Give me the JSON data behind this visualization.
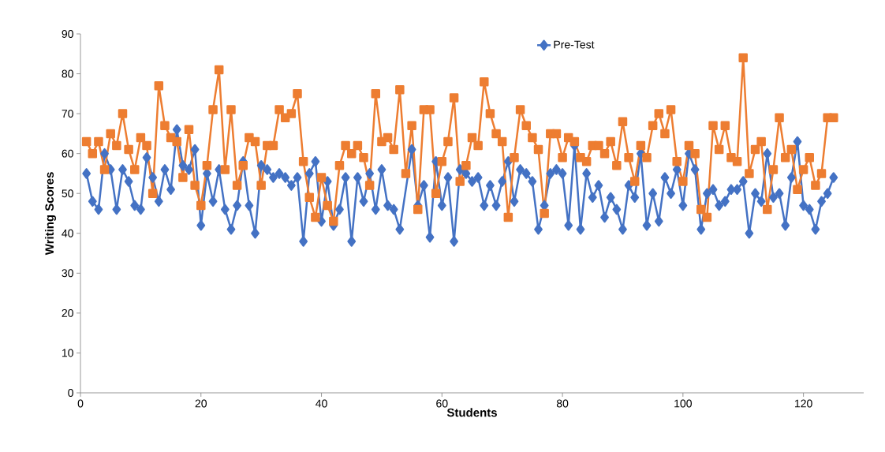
{
  "chart_data": {
    "type": "line",
    "xlabel": "Students",
    "ylabel": "Writing Scores",
    "x": [
      1,
      2,
      3,
      4,
      5,
      6,
      7,
      8,
      9,
      10,
      11,
      12,
      13,
      14,
      15,
      16,
      17,
      18,
      19,
      20,
      21,
      22,
      23,
      24,
      25,
      26,
      27,
      28,
      29,
      30,
      31,
      32,
      33,
      34,
      35,
      36,
      37,
      38,
      39,
      40,
      41,
      42,
      43,
      44,
      45,
      46,
      47,
      48,
      49,
      50,
      51,
      52,
      53,
      54,
      55,
      56,
      57,
      58,
      59,
      60,
      61,
      62,
      63,
      64,
      65,
      66,
      67,
      68,
      69,
      70,
      71,
      72,
      73,
      74,
      75,
      76,
      77,
      78,
      79,
      80,
      81,
      82,
      83,
      84,
      85,
      86,
      87,
      88,
      89,
      90,
      91,
      92,
      93,
      94,
      95,
      96,
      97,
      98,
      99,
      100,
      101,
      102,
      103,
      104,
      105,
      106,
      107,
      108,
      109,
      110,
      111,
      112,
      113,
      114,
      115,
      116,
      117,
      118,
      119,
      120,
      121,
      122,
      123,
      124,
      125
    ],
    "series": [
      {
        "name": "Pre-Test",
        "color": "#4472c4",
        "marker": "diamond",
        "values": [
          55,
          48,
          46,
          60,
          56,
          46,
          56,
          53,
          47,
          46,
          59,
          54,
          48,
          56,
          51,
          66,
          57,
          56,
          61,
          42,
          55,
          48,
          56,
          46,
          41,
          47,
          58,
          47,
          40,
          57,
          56,
          54,
          55,
          54,
          52,
          54,
          38,
          55,
          58,
          43,
          53,
          42,
          46,
          54,
          38,
          54,
          48,
          55,
          46,
          56,
          47,
          46,
          41,
          null,
          61,
          47,
          52,
          39,
          58,
          47,
          54,
          38,
          56,
          55,
          53,
          54,
          47,
          52,
          47,
          53,
          58,
          48,
          56,
          55,
          53,
          41,
          47,
          55,
          56,
          55,
          42,
          62,
          41,
          55,
          49,
          52,
          44,
          49,
          46,
          41,
          52,
          49,
          60,
          42,
          50,
          43,
          54,
          50,
          56,
          47,
          60,
          56,
          41,
          50,
          51,
          47,
          48,
          51,
          51,
          53,
          40,
          50,
          48,
          60,
          49,
          50,
          42,
          54,
          63,
          47,
          46,
          41,
          48,
          50,
          54
        ]
      },
      {
        "color": "#ed7d31",
        "marker": "square",
        "values": [
          63,
          60,
          63,
          56,
          65,
          62,
          70,
          61,
          56,
          64,
          62,
          50,
          77,
          67,
          64,
          63,
          54,
          66,
          52,
          47,
          57,
          71,
          81,
          56,
          71,
          52,
          57,
          64,
          63,
          52,
          62,
          62,
          71,
          69,
          70,
          75,
          58,
          49,
          44,
          54,
          47,
          43,
          57,
          62,
          60,
          62,
          59,
          52,
          75,
          63,
          64,
          61,
          76,
          55,
          67,
          46,
          71,
          71,
          50,
          58,
          63,
          74,
          53,
          57,
          64,
          62,
          78,
          70,
          65,
          63,
          44,
          59,
          71,
          67,
          64,
          61,
          45,
          65,
          65,
          59,
          64,
          63,
          59,
          58,
          62,
          62,
          60,
          63,
          57,
          68,
          59,
          53,
          62,
          59,
          67,
          70,
          65,
          71,
          58,
          53,
          62,
          60,
          46,
          44,
          67,
          61,
          67,
          59,
          58,
          84,
          55,
          61,
          63,
          46,
          56,
          69,
          59,
          61,
          51,
          56,
          59,
          52,
          55,
          69,
          69
        ]
      }
    ],
    "xlim": [
      0,
      130
    ],
    "xticks": [
      0,
      20,
      40,
      60,
      80,
      100,
      120
    ],
    "ylim": [
      0,
      90
    ],
    "yticks": [
      0,
      10,
      20,
      30,
      40,
      50,
      60,
      70,
      80,
      90
    ],
    "legend": "top",
    "line_style": "solid",
    "grid": false
  }
}
